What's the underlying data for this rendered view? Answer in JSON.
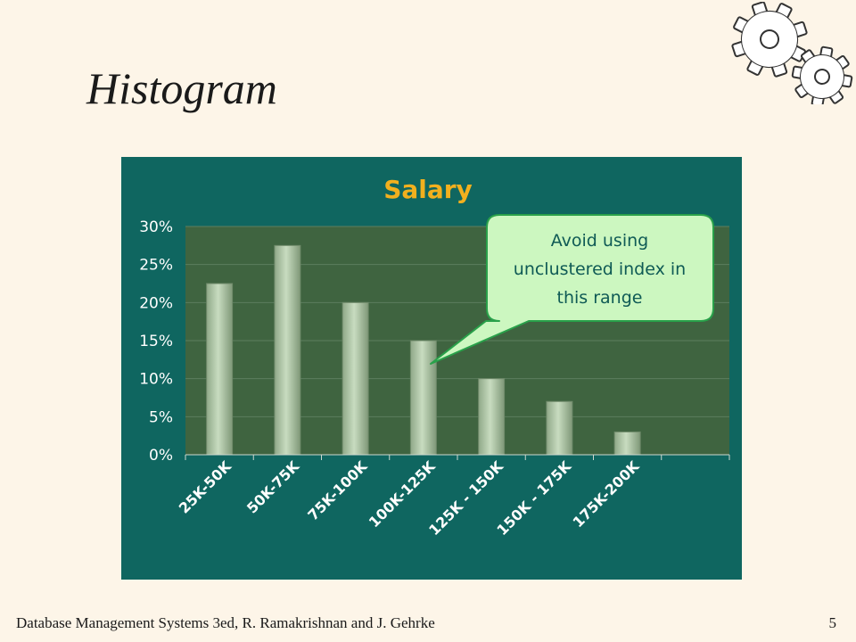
{
  "slide": {
    "title": "Histogram",
    "footer": "Database Management Systems 3ed,  R. Ramakrishnan and J. Gehrke",
    "page_number": "5"
  },
  "icons": {
    "gears": "gears-icon"
  },
  "colors": {
    "background": "#fdf5e8",
    "chart_panel": "#0f6660",
    "plot_area": "#3f6440",
    "bar": "#b3ccaa",
    "chart_title": "#f2b01e",
    "callout_fill": "#ccf7c0",
    "callout_border": "#29a14a",
    "callout_text": "#0f5a55"
  },
  "callout": {
    "text": "Avoid using\nunclustered index in\nthis range",
    "points_to": "100K-125K"
  },
  "chart_data": {
    "type": "bar",
    "title": "Salary",
    "xlabel": "",
    "ylabel": "",
    "categories": [
      "25K-50K",
      "50K-75K",
      "75K-100K",
      "100K-125K",
      "125K - 150K",
      "150K - 175K",
      "175K-200K"
    ],
    "values": [
      22.5,
      27.5,
      20,
      15,
      10,
      7,
      3
    ],
    "ylim": [
      0,
      30
    ],
    "yticks": [
      0,
      5,
      10,
      15,
      20,
      25,
      30
    ],
    "ytick_labels": [
      "0%",
      "5%",
      "10%",
      "15%",
      "20%",
      "25%",
      "30%"
    ],
    "grid": true,
    "legend": "none"
  }
}
